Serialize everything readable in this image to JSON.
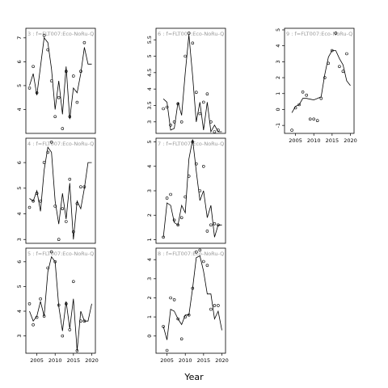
{
  "figure": {
    "xlabel": "Year"
  },
  "chart_data": [
    {
      "type": "line",
      "title": "3 : f=FLT007:Eco-NoRu-Q",
      "xlim": [
        2002,
        2021
      ],
      "ylim": [
        3.0,
        7.4
      ],
      "yticks": [
        4,
        5,
        6,
        7
      ],
      "fitted": {
        "x": [
          2003,
          2004,
          2005,
          2006,
          2007,
          2008,
          2009,
          2010,
          2011,
          2012,
          2013,
          2014,
          2015,
          2016,
          2017,
          2018,
          2019,
          2020
        ],
        "y": [
          5.0,
          5.5,
          4.6,
          5.8,
          7.0,
          6.8,
          5.7,
          4.0,
          5.2,
          3.8,
          5.8,
          3.6,
          4.9,
          4.7,
          5.5,
          6.6,
          5.9,
          5.9
        ]
      },
      "observed": {
        "x": [
          2003,
          2004,
          2005,
          2007,
          2008,
          2009,
          2010,
          2011,
          2012,
          2013,
          2014,
          2015,
          2016,
          2017,
          2018
        ],
        "y": [
          4.9,
          5.8,
          4.7,
          7.1,
          6.5,
          5.2,
          3.7,
          4.5,
          3.2,
          5.6,
          3.7,
          5.4,
          4.3,
          5.6,
          6.8
        ]
      }
    },
    {
      "type": "line",
      "title": "6 : f=FLT007:Eco-NoRu-Q",
      "xlim": [
        2002,
        2021
      ],
      "ylim": [
        2.65,
        5.85
      ],
      "yticks": [
        3.0,
        3.5,
        4.0,
        4.5,
        5.0,
        5.5
      ],
      "fitted": {
        "x": [
          2004,
          2005,
          2006,
          2007,
          2008,
          2009,
          2010,
          2011,
          2012,
          2013,
          2014,
          2015,
          2016,
          2017,
          2018,
          2019,
          2020
        ],
        "y": [
          3.7,
          3.6,
          2.75,
          2.8,
          3.6,
          3.2,
          4.5,
          5.65,
          4.4,
          3.0,
          3.6,
          2.75,
          3.6,
          2.7,
          2.9,
          2.7,
          2.7
        ]
      },
      "observed": {
        "x": [
          2004,
          2005,
          2006,
          2007,
          2008,
          2009,
          2010,
          2011,
          2012,
          2013,
          2014,
          2015,
          2016,
          2017,
          2018,
          2019
        ],
        "y": [
          3.4,
          3.45,
          2.9,
          3.0,
          3.55,
          3.0,
          5.0,
          5.7,
          5.4,
          3.9,
          3.25,
          3.6,
          3.85,
          3.0,
          2.7,
          2.75
        ]
      }
    },
    {
      "type": "line",
      "title": "9 : f=FLT007:Eco-NoRu-Q",
      "xlim": [
        2002,
        2021
      ],
      "ylim": [
        -1.5,
        5.1
      ],
      "yticks": [
        -1,
        0,
        1,
        2,
        3,
        4,
        5
      ],
      "fitted": {
        "x": [
          2004,
          2005,
          2006,
          2007,
          2008,
          2009,
          2010,
          2011,
          2012,
          2013,
          2014,
          2015,
          2016,
          2017,
          2018,
          2019,
          2020
        ],
        "y": [
          -0.2,
          0.2,
          0.3,
          0.7,
          0.7,
          0.65,
          0.6,
          0.7,
          0.8,
          2.2,
          3.3,
          3.7,
          3.7,
          3.2,
          2.8,
          1.8,
          1.5
        ]
      },
      "observed": {
        "x": [
          2004,
          2005,
          2006,
          2007,
          2008,
          2009,
          2010,
          2011,
          2012,
          2013,
          2014,
          2015,
          2016,
          2017,
          2018,
          2019
        ],
        "y": [
          -1.3,
          0.1,
          0.3,
          1.1,
          0.9,
          -0.6,
          -0.6,
          -0.7,
          0.7,
          2.0,
          2.9,
          3.7,
          4.8,
          2.7,
          2.4,
          3.5
        ]
      }
    },
    {
      "type": "line",
      "title": "4 : f=FLT007:Eco-NoRu-Q",
      "xlim": [
        2002,
        2021
      ],
      "ylim": [
        2.85,
        6.95
      ],
      "yticks": [
        3,
        4,
        5,
        6
      ],
      "fitted": {
        "x": [
          2003,
          2004,
          2005,
          2006,
          2007,
          2008,
          2009,
          2010,
          2011,
          2012,
          2013,
          2014,
          2015,
          2016,
          2017,
          2018,
          2019,
          2020
        ],
        "y": [
          4.6,
          4.5,
          4.9,
          4.1,
          5.7,
          6.6,
          6.4,
          4.5,
          3.6,
          4.8,
          3.8,
          5.2,
          3.0,
          4.5,
          4.2,
          5.0,
          6.0,
          6.0
        ]
      },
      "observed": {
        "x": [
          2003,
          2004,
          2005,
          2006,
          2007,
          2008,
          2009,
          2010,
          2011,
          2012,
          2013,
          2014,
          2015,
          2016,
          2017,
          2018
        ],
        "y": [
          4.25,
          4.5,
          4.8,
          4.5,
          6.0,
          6.4,
          6.8,
          4.3,
          3.0,
          4.2,
          3.7,
          5.35,
          3.3,
          4.4,
          5.05,
          5.05
        ]
      }
    },
    {
      "type": "line",
      "title": "7 : f=FLT007:Eco-NoRu-Q",
      "xlim": [
        2002,
        2021
      ],
      "ylim": [
        0.85,
        5.15
      ],
      "yticks": [
        1,
        2,
        3,
        4,
        5
      ],
      "fitted": {
        "x": [
          2004,
          2005,
          2006,
          2007,
          2008,
          2009,
          2010,
          2011,
          2012,
          2013,
          2014,
          2015,
          2016,
          2017,
          2018,
          2019,
          2020
        ],
        "y": [
          1.1,
          2.5,
          2.4,
          1.7,
          1.6,
          2.4,
          2.1,
          4.3,
          5.1,
          3.8,
          2.6,
          3.0,
          1.9,
          2.4,
          1.1,
          1.6,
          1.6
        ]
      },
      "observed": {
        "x": [
          2004,
          2005,
          2006,
          2007,
          2008,
          2009,
          2010,
          2011,
          2012,
          2013,
          2014,
          2015,
          2016,
          2017,
          2018,
          2019
        ],
        "y": [
          1.1,
          2.7,
          2.85,
          1.8,
          1.6,
          1.9,
          2.75,
          3.6,
          5.0,
          4.1,
          3.0,
          4.0,
          1.35,
          1.6,
          1.65,
          1.6
        ]
      }
    },
    {
      "type": "line",
      "title": "5 : f=FLT007:Eco-NoRu-Q",
      "xlim": [
        2002,
        2021
      ],
      "ylim": [
        2.3,
        6.55
      ],
      "yticks": [
        3,
        4,
        5,
        6
      ],
      "fitted": {
        "x": [
          2003,
          2004,
          2005,
          2006,
          2007,
          2008,
          2009,
          2010,
          2011,
          2012,
          2013,
          2014,
          2015,
          2016,
          2017,
          2018,
          2019,
          2020
        ],
        "y": [
          4.0,
          3.6,
          3.8,
          4.4,
          3.8,
          5.6,
          6.2,
          6.0,
          4.2,
          3.2,
          4.4,
          3.3,
          4.5,
          2.4,
          4.0,
          3.6,
          3.6,
          4.3
        ]
      },
      "observed": {
        "x": [
          2003,
          2004,
          2005,
          2006,
          2007,
          2008,
          2009,
          2010,
          2011,
          2012,
          2013,
          2014,
          2015,
          2016,
          2017,
          2018
        ],
        "y": [
          4.3,
          3.45,
          3.75,
          4.5,
          3.8,
          5.75,
          6.4,
          6.0,
          4.25,
          3.0,
          4.3,
          3.25,
          5.2,
          2.4,
          3.6,
          3.6
        ]
      }
    },
    {
      "type": "line",
      "title": "8 : f=FLT007:Eco-NoRu-Q",
      "xlim": [
        2002,
        2021
      ],
      "ylim": [
        -0.9,
        4.6
      ],
      "yticks": [
        0,
        1,
        2,
        3,
        4
      ],
      "fitted": {
        "x": [
          2004,
          2005,
          2006,
          2007,
          2008,
          2009,
          2010,
          2011,
          2012,
          2013,
          2014,
          2015,
          2016,
          2017,
          2018,
          2019,
          2020
        ],
        "y": [
          0.5,
          -0.2,
          1.4,
          1.3,
          0.9,
          0.6,
          1.1,
          1.1,
          2.5,
          4.1,
          4.2,
          3.4,
          2.2,
          2.2,
          0.9,
          1.3,
          0.3
        ]
      },
      "observed": {
        "x": [
          2004,
          2005,
          2006,
          2007,
          2008,
          2009,
          2010,
          2011,
          2012,
          2013,
          2014,
          2015,
          2016,
          2017,
          2018,
          2019
        ],
        "y": [
          0.5,
          -0.75,
          2.0,
          1.9,
          0.9,
          -0.15,
          1.0,
          1.1,
          2.5,
          4.4,
          4.5,
          3.9,
          3.7,
          1.4,
          1.6,
          1.6
        ]
      }
    }
  ]
}
